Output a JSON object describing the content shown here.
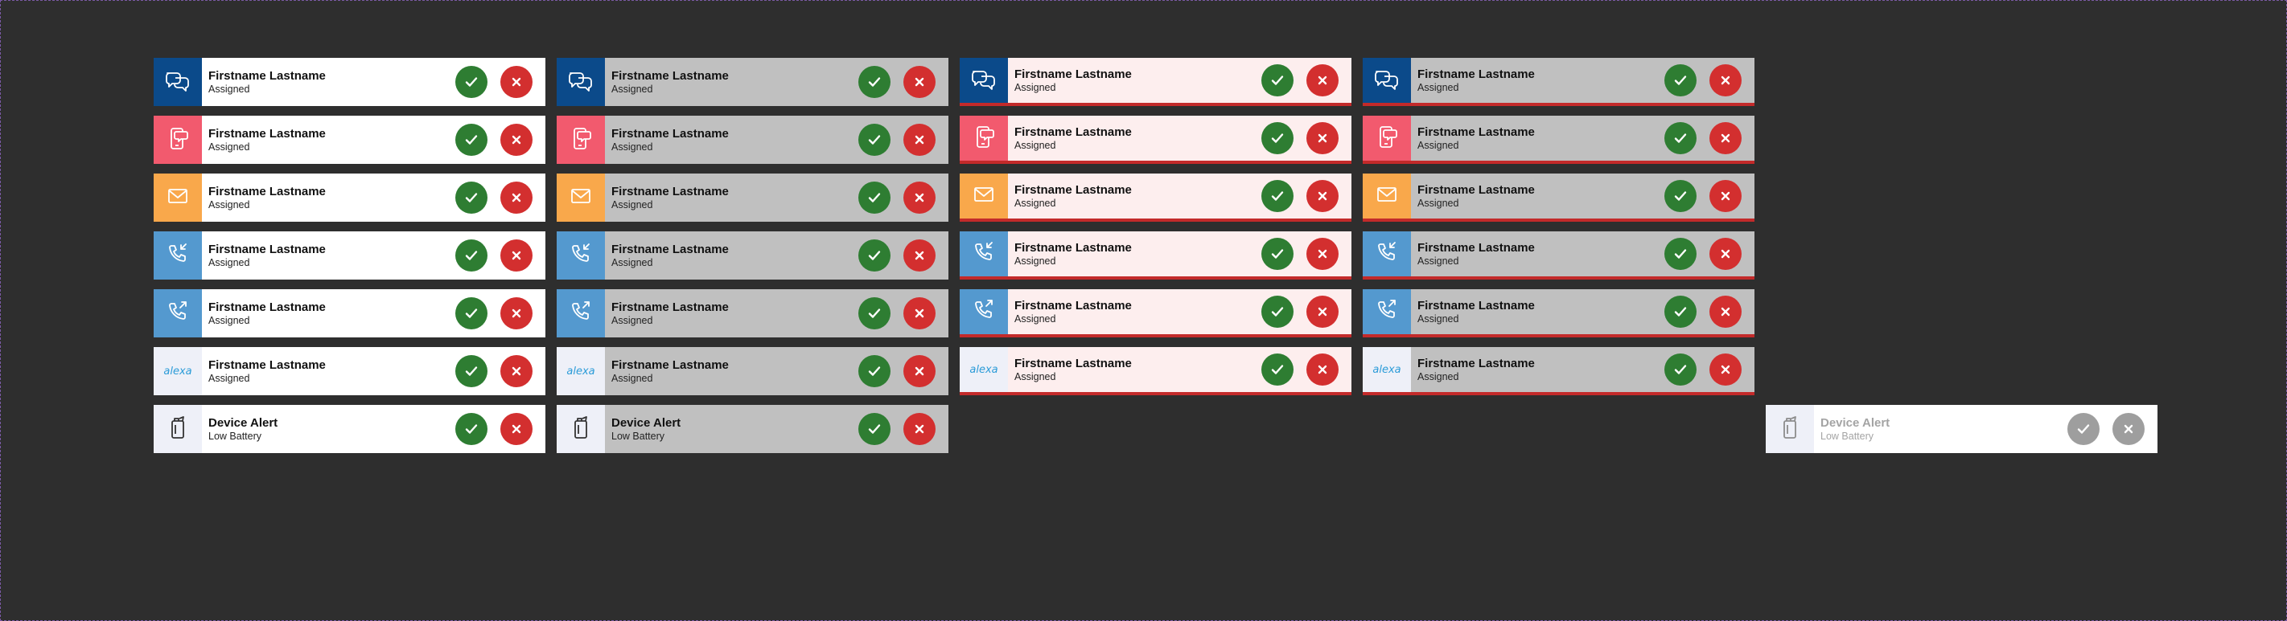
{
  "colors": {
    "background": "#2e2e2e",
    "chat": "#0b4a8a",
    "sms": "#f25a6e",
    "email": "#f9a84b",
    "call": "#5499cf",
    "alexa": "#eef0f8",
    "device": "#eef0f8",
    "accept": "#2e7d32",
    "reject": "#d32f2f",
    "disabled_button": "#9e9e9e",
    "urgent_border": "#c32a2a"
  },
  "icons": {
    "chat": "chat-bubbles-icon",
    "sms": "mobile-message-icon",
    "email": "envelope-icon",
    "call_in": "incoming-call-icon",
    "call_out": "outgoing-call-icon",
    "alexa": "alexa-logo",
    "device": "device-alert-icon"
  },
  "accept_icon": "checkmark-icon",
  "reject_icon": "close-icon",
  "columns": [
    {
      "variant": "default",
      "cards": [
        {
          "type": "chat",
          "title": "Firstname Lastname",
          "subtitle": "Assigned"
        },
        {
          "type": "sms",
          "title": "Firstname Lastname",
          "subtitle": "Assigned"
        },
        {
          "type": "email",
          "title": "Firstname Lastname",
          "subtitle": "Assigned"
        },
        {
          "type": "call_in",
          "title": "Firstname Lastname",
          "subtitle": "Assigned"
        },
        {
          "type": "call_out",
          "title": "Firstname Lastname",
          "subtitle": "Assigned"
        },
        {
          "type": "alexa",
          "title": "Firstname Lastname",
          "subtitle": "Assigned"
        },
        {
          "type": "device",
          "title": "Device Alert",
          "subtitle": "Low Battery"
        }
      ]
    },
    {
      "variant": "selected",
      "cards": [
        {
          "type": "chat",
          "title": "Firstname Lastname",
          "subtitle": "Assigned"
        },
        {
          "type": "sms",
          "title": "Firstname Lastname",
          "subtitle": "Assigned"
        },
        {
          "type": "email",
          "title": "Firstname Lastname",
          "subtitle": "Assigned"
        },
        {
          "type": "call_in",
          "title": "Firstname Lastname",
          "subtitle": "Assigned"
        },
        {
          "type": "call_out",
          "title": "Firstname Lastname",
          "subtitle": "Assigned"
        },
        {
          "type": "alexa",
          "title": "Firstname Lastname",
          "subtitle": "Assigned"
        },
        {
          "type": "device",
          "title": "Device Alert",
          "subtitle": "Low Battery"
        }
      ]
    },
    {
      "variant": "urgent",
      "cards": [
        {
          "type": "chat",
          "title": "Firstname Lastname",
          "subtitle": "Assigned"
        },
        {
          "type": "sms",
          "title": "Firstname Lastname",
          "subtitle": "Assigned"
        },
        {
          "type": "email",
          "title": "Firstname Lastname",
          "subtitle": "Assigned"
        },
        {
          "type": "call_in",
          "title": "Firstname Lastname",
          "subtitle": "Assigned"
        },
        {
          "type": "call_out",
          "title": "Firstname Lastname",
          "subtitle": "Assigned"
        },
        {
          "type": "alexa",
          "title": "Firstname Lastname",
          "subtitle": "Assigned"
        }
      ]
    },
    {
      "variant": "urgent-selected",
      "cards": [
        {
          "type": "chat",
          "title": "Firstname Lastname",
          "subtitle": "Assigned"
        },
        {
          "type": "sms",
          "title": "Firstname Lastname",
          "subtitle": "Assigned"
        },
        {
          "type": "email",
          "title": "Firstname Lastname",
          "subtitle": "Assigned"
        },
        {
          "type": "call_in",
          "title": "Firstname Lastname",
          "subtitle": "Assigned"
        },
        {
          "type": "call_out",
          "title": "Firstname Lastname",
          "subtitle": "Assigned"
        },
        {
          "type": "alexa",
          "title": "Firstname Lastname",
          "subtitle": "Assigned"
        }
      ]
    },
    {
      "variant": "disabled",
      "cards": [
        {
          "type": "device",
          "title": "Device Alert",
          "subtitle": "Low Battery"
        }
      ]
    }
  ],
  "alexa_label": "alexa"
}
